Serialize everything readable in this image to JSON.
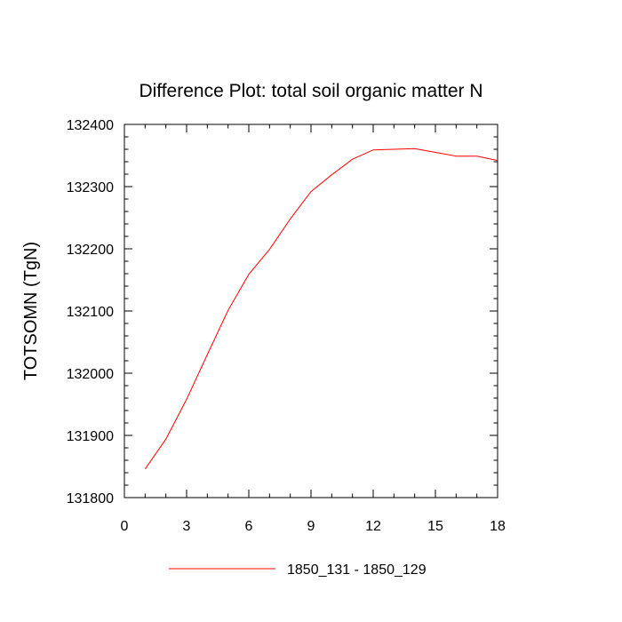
{
  "chart_data": {
    "type": "line",
    "title": "Difference Plot: total soil organic matter N",
    "xlabel": "",
    "ylabel": "TOTSOMN  (TgN)",
    "xlim": [
      0,
      18
    ],
    "ylim": [
      131800,
      132400
    ],
    "xticks": [
      0,
      3,
      6,
      9,
      12,
      15,
      18
    ],
    "yticks": [
      131800,
      131900,
      132000,
      132100,
      132200,
      132300,
      132400
    ],
    "x_minor_step": 1,
    "y_minor_step": 20,
    "grid": false,
    "legend_position": "bottom-center",
    "series": [
      {
        "name": "1850_131 - 1850_129",
        "color": "#ff0000",
        "x": [
          1,
          2,
          3,
          4,
          5,
          6,
          7,
          8,
          9,
          10,
          11,
          12,
          13,
          14,
          15,
          16,
          17,
          18
        ],
        "values": [
          131846,
          131894,
          131958,
          132030,
          132101,
          132159,
          132199,
          132248,
          132292,
          132319,
          132344,
          132359,
          132360,
          132361,
          132355,
          132349,
          132349,
          132342
        ]
      }
    ]
  }
}
